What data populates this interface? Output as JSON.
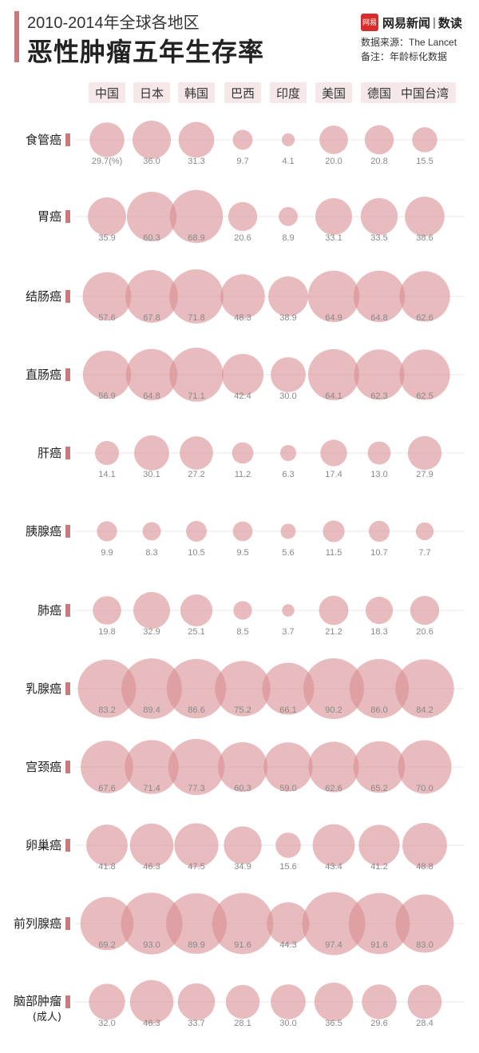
{
  "header": {
    "subtitle": "2010-2014年全球各地区",
    "title": "恶性肿瘤五年生存率",
    "brand_logo": "网易",
    "brand_name": "网易新闻",
    "brand_separator": "|",
    "brand_sub": "数读",
    "source": "数据来源：The Lancet",
    "note": "备注：年龄标化数据"
  },
  "colors": {
    "bubble": "#d98d93",
    "accent": "#c97a7f",
    "column_label_bg": "#f6e8e9"
  },
  "chart_data": {
    "type": "bubble-matrix",
    "unit_note": "(%)",
    "categories": [
      "中国",
      "日本",
      "韩国",
      "巴西",
      "印度",
      "美国",
      "德国",
      "中国台湾"
    ],
    "rows": [
      {
        "name": "食管癌",
        "values": [
          29.7,
          36.0,
          31.3,
          9.7,
          4.1,
          20.0,
          20.8,
          15.5
        ]
      },
      {
        "name": "胃癌",
        "values": [
          35.9,
          60.3,
          68.9,
          20.6,
          8.9,
          33.1,
          33.5,
          38.6
        ]
      },
      {
        "name": "结肠癌",
        "values": [
          57.6,
          67.8,
          71.8,
          48.3,
          38.9,
          64.9,
          64.8,
          62.6
        ]
      },
      {
        "name": "直肠癌",
        "values": [
          56.9,
          64.8,
          71.1,
          42.4,
          30.0,
          64.1,
          62.3,
          62.5
        ]
      },
      {
        "name": "肝癌",
        "values": [
          14.1,
          30.1,
          27.2,
          11.2,
          6.3,
          17.4,
          13.0,
          27.9
        ]
      },
      {
        "name": "胰腺癌",
        "values": [
          9.9,
          8.3,
          10.5,
          9.5,
          5.6,
          11.5,
          10.7,
          7.7
        ]
      },
      {
        "name": "肺癌",
        "values": [
          19.8,
          32.9,
          25.1,
          8.5,
          3.7,
          21.2,
          18.3,
          20.6
        ]
      },
      {
        "name": "乳腺癌",
        "values": [
          83.2,
          89.4,
          86.6,
          75.2,
          66.1,
          90.2,
          86.0,
          84.2
        ]
      },
      {
        "name": "宫颈癌",
        "values": [
          67.6,
          71.4,
          77.3,
          60.3,
          59.0,
          62.6,
          65.2,
          70.0
        ]
      },
      {
        "name": "卵巢癌",
        "values": [
          41.8,
          46.3,
          47.5,
          34.9,
          15.6,
          43.4,
          41.2,
          48.8
        ]
      },
      {
        "name": "前列腺癌",
        "values": [
          69.2,
          93.0,
          89.9,
          91.6,
          44.3,
          97.4,
          91.6,
          83.0
        ]
      },
      {
        "name": "脑部肿瘤",
        "name_sub": "(成人)",
        "values": [
          32.0,
          46.3,
          33.7,
          28.1,
          30.0,
          36.5,
          29.6,
          28.4
        ]
      }
    ]
  }
}
